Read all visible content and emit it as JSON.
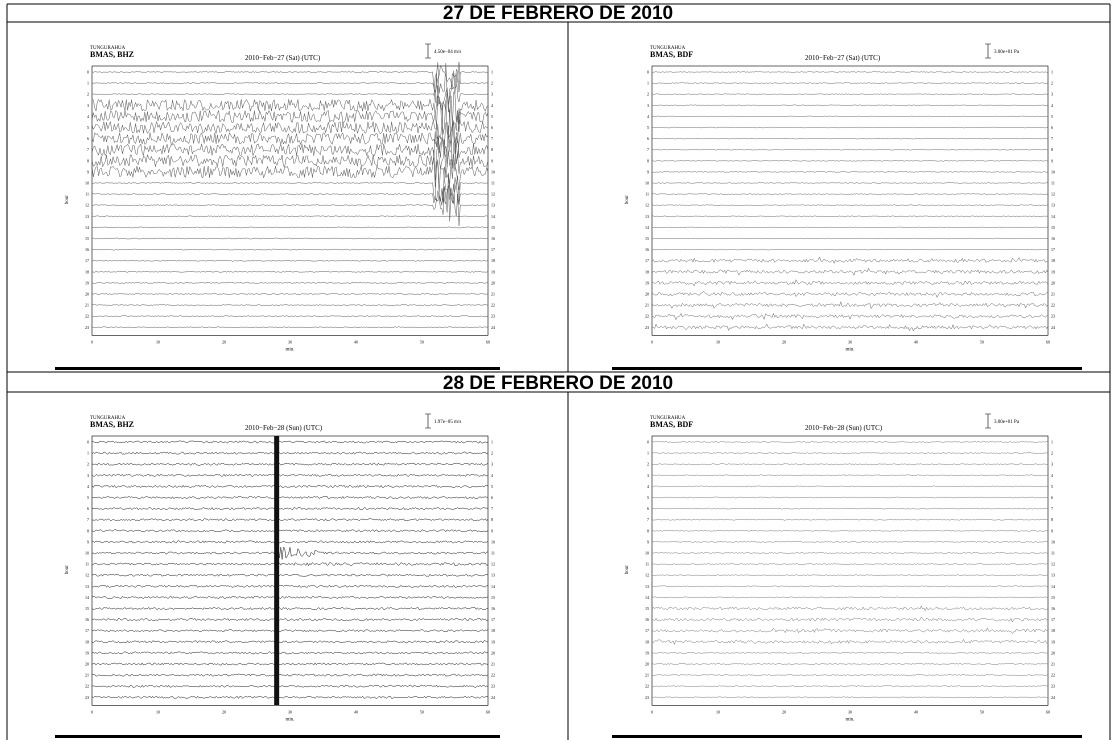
{
  "sections": [
    {
      "title": "27 DE FEBRERO DE 2010",
      "panels": [
        {
          "network": "TUNGURAHUA",
          "station": "BMAS, BHZ",
          "date": "2010−Feb−27 (Sat)  (UTC)",
          "scale": "4.50e−04 m/s"
        },
        {
          "network": "TUNGURAHUA",
          "station": "BMAS, BDF",
          "date": "2010−Feb−27 (Sat)  (UTC)",
          "scale": "3.00e+01 Pa"
        }
      ]
    },
    {
      "title": "28 DE FEBRERO DE 2010",
      "panels": [
        {
          "network": "TUNGURAHUA",
          "station": "BMAS, BHZ",
          "date": "2010−Feb−28 (Sun)  (UTC)",
          "scale": "1.97e−05 m/s"
        },
        {
          "network": "TUNGURAHUA",
          "station": "BMAS, BDF",
          "date": "2010−Feb−28 (Sun)  (UTC)",
          "scale": "3.00e+01 Pa"
        }
      ]
    }
  ],
  "axes": {
    "y_label": "hour",
    "x_label": "min.",
    "left_hours": [
      0,
      1,
      2,
      3,
      4,
      5,
      6,
      7,
      8,
      9,
      10,
      11,
      12,
      13,
      14,
      15,
      16,
      17,
      18,
      19,
      20,
      21,
      22,
      23
    ],
    "right_hours": [
      1,
      2,
      3,
      4,
      5,
      6,
      7,
      8,
      9,
      10,
      11,
      12,
      13,
      14,
      15,
      16,
      17,
      18,
      19,
      20,
      21,
      22,
      23,
      24
    ],
    "x_ticks": [
      0,
      10,
      20,
      30,
      40,
      50,
      60
    ]
  }
}
